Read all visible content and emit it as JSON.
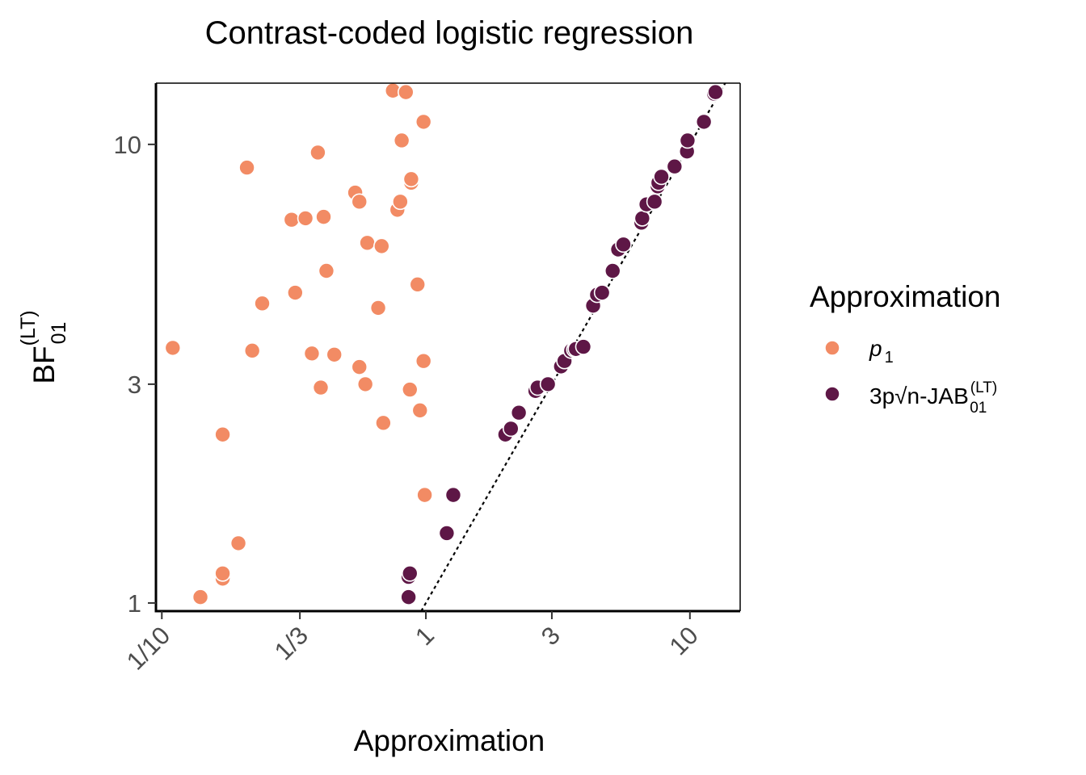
{
  "chart_data": {
    "type": "scatter",
    "title": "Contrast-coded logistic regression",
    "xlabel": "Approximation",
    "ylabel": "BF",
    "ylabel_sup": "(LT)",
    "ylabel_sub": "01",
    "x_scale": "log",
    "y_scale": "log",
    "xlim": [
      0.095,
      15.5
    ],
    "ylim": [
      0.96,
      13.6
    ],
    "x_ticks": [
      0.1,
      0.3333,
      1,
      3,
      10
    ],
    "x_tick_labels": [
      "1/10",
      "1/3",
      "1",
      "3",
      "10"
    ],
    "y_ticks": [
      1,
      3,
      10
    ],
    "y_tick_labels": [
      "1",
      "3",
      "10"
    ],
    "reference_line": "y = x (dashed)",
    "grid": false,
    "legend": {
      "title": "Approximation",
      "position": "right",
      "entries": [
        {
          "label": "p",
          "subscript": "1",
          "color": "#F28B64"
        },
        {
          "label": "3p√n-JAB",
          "subscript": "01",
          "superscript": "(LT)",
          "color": "#5E1746"
        }
      ]
    },
    "series": [
      {
        "name": "p1",
        "color": "#F28B64",
        "points": [
          [
            0.11,
            3.6
          ],
          [
            0.14,
            1.03
          ],
          [
            0.17,
            2.33
          ],
          [
            0.17,
            1.13
          ],
          [
            0.17,
            1.16
          ],
          [
            0.195,
            1.35
          ],
          [
            0.21,
            8.9
          ],
          [
            0.22,
            3.55
          ],
          [
            0.24,
            4.5
          ],
          [
            0.31,
            6.85
          ],
          [
            0.32,
            4.75
          ],
          [
            0.35,
            6.9
          ],
          [
            0.37,
            3.5
          ],
          [
            0.39,
            9.6
          ],
          [
            0.4,
            2.95
          ],
          [
            0.41,
            6.95
          ],
          [
            0.42,
            5.3
          ],
          [
            0.45,
            3.48
          ],
          [
            0.54,
            7.85
          ],
          [
            0.56,
            7.5
          ],
          [
            0.56,
            3.27
          ],
          [
            0.59,
            3.0
          ],
          [
            0.6,
            6.1
          ],
          [
            0.66,
            4.4
          ],
          [
            0.68,
            6.0
          ],
          [
            0.69,
            2.47
          ],
          [
            0.75,
            13.1
          ],
          [
            0.78,
            7.2
          ],
          [
            0.8,
            7.5
          ],
          [
            0.81,
            10.2
          ],
          [
            0.84,
            13.0
          ],
          [
            0.87,
            2.92
          ],
          [
            0.88,
            8.25
          ],
          [
            0.88,
            8.4
          ],
          [
            0.93,
            4.95
          ],
          [
            0.95,
            2.63
          ],
          [
            0.98,
            11.2
          ],
          [
            0.98,
            3.37
          ],
          [
            0.99,
            1.72
          ]
        ]
      },
      {
        "name": "3p√n-JAB01(LT)",
        "color": "#5E1746",
        "points": [
          [
            0.86,
            1.03
          ],
          [
            0.86,
            1.14
          ],
          [
            0.87,
            1.16
          ],
          [
            1.2,
            1.42
          ],
          [
            1.27,
            1.72
          ],
          [
            2.0,
            2.33
          ],
          [
            2.1,
            2.4
          ],
          [
            2.25,
            2.6
          ],
          [
            2.6,
            2.9
          ],
          [
            2.65,
            2.95
          ],
          [
            2.9,
            3.0
          ],
          [
            3.25,
            3.28
          ],
          [
            3.35,
            3.37
          ],
          [
            3.55,
            3.55
          ],
          [
            3.65,
            3.57
          ],
          [
            3.7,
            3.58
          ],
          [
            3.95,
            3.62
          ],
          [
            4.3,
            4.45
          ],
          [
            4.45,
            4.7
          ],
          [
            4.65,
            4.75
          ],
          [
            5.1,
            5.3
          ],
          [
            5.35,
            5.9
          ],
          [
            5.6,
            6.05
          ],
          [
            6.55,
            6.75
          ],
          [
            6.6,
            6.9
          ],
          [
            6.85,
            7.4
          ],
          [
            7.35,
            7.5
          ],
          [
            7.55,
            8.1
          ],
          [
            7.6,
            8.25
          ],
          [
            7.8,
            8.5
          ],
          [
            8.75,
            8.95
          ],
          [
            9.75,
            9.65
          ],
          [
            9.8,
            10.2
          ],
          [
            11.3,
            11.2
          ],
          [
            12.35,
            12.9
          ],
          [
            12.5,
            13.0
          ]
        ]
      }
    ]
  }
}
